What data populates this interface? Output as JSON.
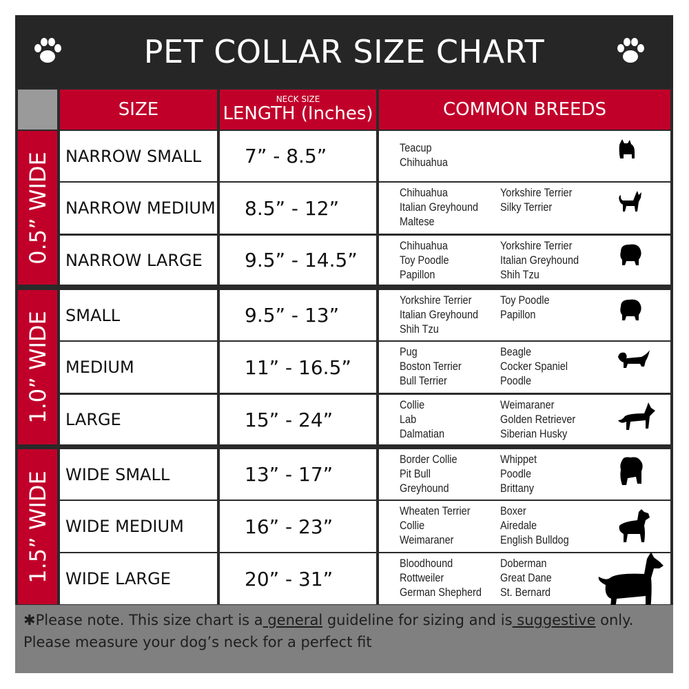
{
  "title": "PET COLLAR SIZE CHART",
  "icons": {
    "left": "paw-icon",
    "right": "paw-icon"
  },
  "colors": {
    "header_red": "#c1002a",
    "title_bg": "#262626",
    "footer_bg": "#808080"
  },
  "headers": {
    "size": "SIZE",
    "neck_size": "NECK SIZE",
    "length": "LENGTH (Inches)",
    "breeds": "COMMON BREEDS"
  },
  "groups": [
    {
      "label": "0.5” WIDE",
      "rows": [
        {
          "size": "NARROW SMALL",
          "length": "7” - 8.5”",
          "col1": [
            "Teacup",
            "Chihuahua"
          ],
          "col2": [],
          "icon": "yorkie-silhouette-icon"
        },
        {
          "size": "NARROW MEDIUM",
          "length": "8.5” - 12”",
          "col1": [
            "Chihuahua",
            "Italian Greyhound",
            "Maltese"
          ],
          "col2": [
            "Yorkshire Terrier",
            "Silky Terrier"
          ],
          "icon": "chihuahua-silhouette-icon"
        },
        {
          "size": "NARROW LARGE",
          "length": "9.5” - 14.5”",
          "col1": [
            "Chihuahua",
            "Toy Poodle",
            "Papillon"
          ],
          "col2": [
            "Yorkshire Terrier",
            "Italian Greyhound",
            "Shih Tzu"
          ],
          "icon": "pomeranian-silhouette-icon"
        }
      ]
    },
    {
      "label": "1.0” WIDE",
      "rows": [
        {
          "size": "SMALL",
          "length": "9.5” - 13”",
          "col1": [
            "Yorkshire Terrier",
            "Italian Greyhound",
            "Shih Tzu"
          ],
          "col2": [
            "Toy Poodle",
            "Papillon"
          ],
          "icon": "pomeranian-silhouette-icon"
        },
        {
          "size": "MEDIUM",
          "length": "11” - 16.5”",
          "col1": [
            "Pug",
            "Boston Terrier",
            "Bull Terrier"
          ],
          "col2": [
            "Beagle",
            "Cocker Spaniel",
            "Poodle"
          ],
          "icon": "dachshund-silhouette-icon"
        },
        {
          "size": "LARGE",
          "length": "15” - 24”",
          "col1": [
            "Collie",
            "Lab",
            "Dalmatian"
          ],
          "col2": [
            "Weimaraner",
            "Golden Retriever",
            "Siberian Husky"
          ],
          "icon": "shepherd-silhouette-icon"
        }
      ]
    },
    {
      "label": "1.5” WIDE",
      "rows": [
        {
          "size": "WIDE SMALL",
          "length": "13” - 17”",
          "col1": [
            "Border Collie",
            "Pit Bull",
            "Greyhound"
          ],
          "col2": [
            "Whippet",
            "Poodle",
            "Brittany"
          ],
          "icon": "bulldog-silhouette-icon"
        },
        {
          "size": "WIDE MEDIUM",
          "length": "16” - 23”",
          "col1": [
            "Wheaten Terrier",
            "Collie",
            "Weimaraner"
          ],
          "col2": [
            "Boxer",
            "Airedale",
            "English Bulldog"
          ],
          "icon": "pitbull-silhouette-icon"
        },
        {
          "size": "WIDE LARGE",
          "length": "20” - 31”",
          "col1": [
            "Bloodhound",
            "Rottweiler",
            "German Shepherd"
          ],
          "col2": [
            "Doberman",
            "Great Dane",
            "St. Bernard"
          ],
          "icon": "doberman-silhouette-icon"
        }
      ]
    }
  ],
  "footer": {
    "p1": "✱Please note. This size chart is a",
    "w1": " general",
    "p2": " guideline for sizing and is",
    "w2": " suggestive",
    "p3": " only.",
    "line2": "Please measure your dog’s neck for a perfect fit"
  }
}
